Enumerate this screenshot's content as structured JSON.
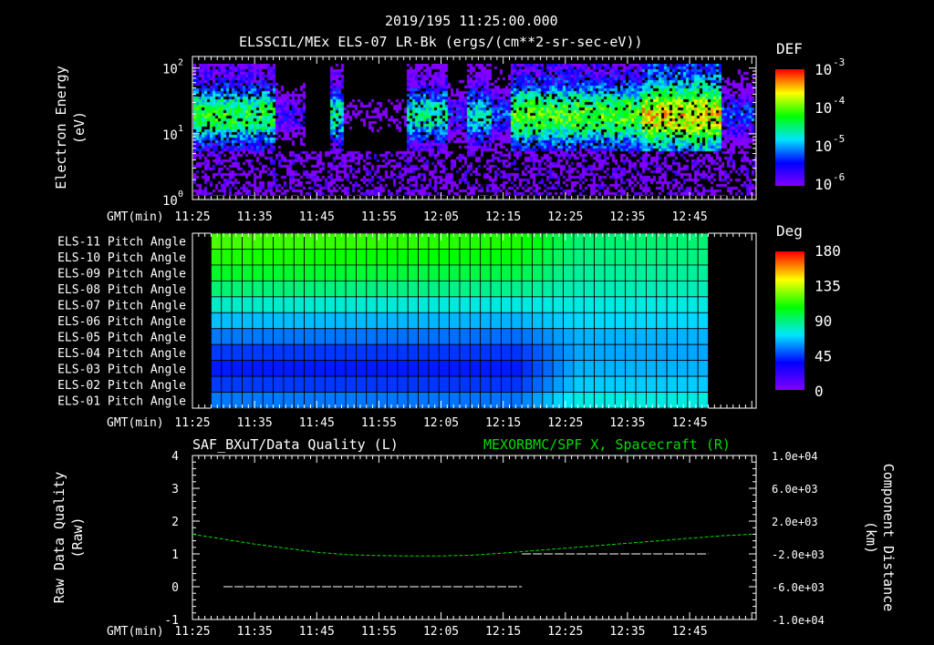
{
  "header": {
    "datetime": "2019/195 11:25:00.000",
    "panel1_title": "ELSSCIL/MEx ELS-07 LR-Bk  (ergs/(cm**2-sr-sec-eV))"
  },
  "colors": {
    "background": "#000000",
    "axis": "#ffffff",
    "spacecraft_line": "#00dd00",
    "quality_line": "#ffffff"
  },
  "time_axis": {
    "label": "GMT(min)",
    "ticks": [
      "11:25",
      "11:35",
      "11:45",
      "11:55",
      "12:05",
      "12:15",
      "12:25",
      "12:35",
      "12:45"
    ]
  },
  "chart_data": [
    {
      "type": "heatmap",
      "title": "ELSSCIL/MEx ELS-07 LR-Bk  (ergs/(cm**2-sr-sec-eV))",
      "ylabel_line1": "Electron Energy",
      "ylabel_line2": "(eV)",
      "yscale": "log",
      "ylim": [
        1,
        150
      ],
      "ytick_labels": [
        {
          "base": "10",
          "exp": "0"
        },
        {
          "base": "10",
          "exp": "1"
        },
        {
          "base": "10",
          "exp": "2"
        }
      ],
      "colorbar": {
        "label": "DEF",
        "scale": "log",
        "range": [
          1e-06,
          0.001
        ],
        "tick_labels": [
          {
            "base": "10",
            "exp": "-3"
          },
          {
            "base": "10",
            "exp": "-4"
          },
          {
            "base": "10",
            "exp": "-5"
          },
          {
            "base": "10",
            "exp": "-6"
          }
        ]
      },
      "time_range_min": [
        0,
        90
      ],
      "intensity_segments_log10": [
        {
          "from_min": 0,
          "to_min": 13,
          "peak": -4.3
        },
        {
          "from_min": 13,
          "to_min": 18,
          "peak": -5.7
        },
        {
          "from_min": 18,
          "to_min": 22,
          "peak": -7
        },
        {
          "from_min": 22,
          "to_min": 24,
          "peak": -4.6
        },
        {
          "from_min": 24,
          "to_min": 34,
          "peak": -6.5
        },
        {
          "from_min": 34,
          "to_min": 41,
          "peak": -4.6
        },
        {
          "from_min": 41,
          "to_min": 44,
          "peak": -5.5
        },
        {
          "from_min": 44,
          "to_min": 48,
          "peak": -4.7
        },
        {
          "from_min": 48,
          "to_min": 51,
          "peak": -5.3
        },
        {
          "from_min": 51,
          "to_min": 72,
          "peak": -4.1
        },
        {
          "from_min": 72,
          "to_min": 85,
          "peak": -3.6
        },
        {
          "from_min": 85,
          "to_min": 90,
          "peak": -5.3
        }
      ]
    },
    {
      "type": "heatmap",
      "rows": [
        "ELS-11 Pitch Angle",
        "ELS-10 Pitch Angle",
        "ELS-09 Pitch Angle",
        "ELS-08 Pitch Angle",
        "ELS-07 Pitch Angle",
        "ELS-06 Pitch Angle",
        "ELS-05 Pitch Angle",
        "ELS-04 Pitch Angle",
        "ELS-03 Pitch Angle",
        "ELS-02 Pitch Angle",
        "ELS-01 Pitch Angle"
      ],
      "row_values_start_deg": [
        118,
        112,
        103,
        92,
        80,
        66,
        55,
        45,
        40,
        45,
        55
      ],
      "row_values_mid_deg": [
        112,
        106,
        98,
        88,
        76,
        64,
        53,
        44,
        40,
        44,
        54
      ],
      "row_values_end_deg": [
        92,
        90,
        86,
        82,
        76,
        70,
        64,
        62,
        64,
        68,
        76
      ],
      "data_time_range_min": [
        3,
        83
      ],
      "n_columns": 48,
      "colorbar": {
        "label": "Deg",
        "range": [
          0,
          180
        ],
        "tick_labels": [
          "180",
          "135",
          "90",
          "45",
          "0"
        ]
      }
    },
    {
      "type": "line",
      "title_left": "SAF_BXuT/Data Quality (L)",
      "title_right": "MEXORBMC/SPF X, Spacecraft (R)",
      "ylabel_left_line1": "Raw Data Quality",
      "ylabel_left_line2": "(Raw)",
      "ylabel_right_line1": "Component Distance",
      "ylabel_right_line2": "(km)",
      "ylim_left": [
        -1,
        4
      ],
      "ytick_left": [
        "4",
        "3",
        "2",
        "1",
        "0",
        "-1"
      ],
      "ylim_right": [
        -10000,
        10000
      ],
      "ytick_right": [
        "1.0e+04",
        "6.0e+03",
        "2.0e+03",
        "-2.0e+03",
        "-6.0e+03",
        "-1.0e+04"
      ],
      "series": [
        {
          "name": "Data Quality",
          "axis": "left",
          "segments": [
            {
              "x": [
                5,
                53
              ],
              "y": [
                0,
                0
              ]
            },
            {
              "x": [
                53,
                83
              ],
              "y": [
                1,
                1
              ]
            }
          ]
        },
        {
          "name": "Spacecraft X",
          "axis": "right",
          "x": [
            0,
            5,
            10,
            15,
            20,
            25,
            30,
            35,
            40,
            45,
            50,
            55,
            60,
            65,
            70,
            75,
            80,
            85,
            90
          ],
          "y": [
            400,
            -200,
            -800,
            -1300,
            -1800,
            -2100,
            -2200,
            -2250,
            -2250,
            -2150,
            -1900,
            -1600,
            -1300,
            -1000,
            -700,
            -400,
            -100,
            200,
            400
          ]
        }
      ]
    }
  ]
}
